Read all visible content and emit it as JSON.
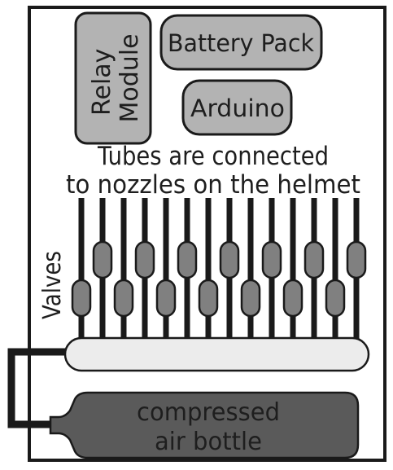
{
  "components": {
    "relay_module": "Relay\nModule",
    "battery_pack": "Battery Pack",
    "arduino": "Arduino"
  },
  "annotation": {
    "tubes_line1": "Tubes are connected",
    "tubes_line2": "to nozzles on the helmet",
    "valves": "Valves"
  },
  "bottle": {
    "line1": "compressed",
    "line2": "air bottle"
  },
  "tube_count": 14,
  "colors": {
    "box_fill": "#b3b3b3",
    "tube": "#1a1a1a",
    "valve_fill": "#808080",
    "manifold_fill": "#ececec",
    "bottle_fill": "#5a5a5a",
    "outline": "#1a1a1a"
  }
}
